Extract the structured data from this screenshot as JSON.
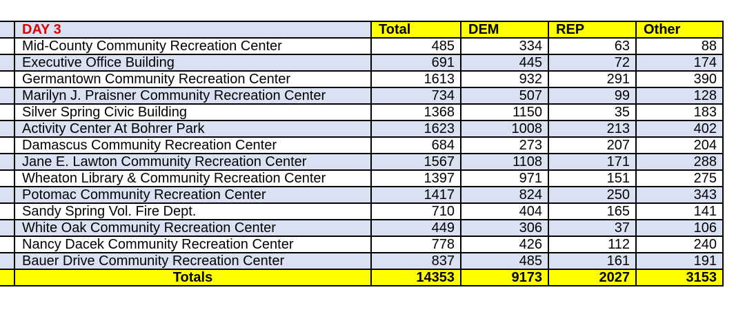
{
  "header": {
    "day": "DAY 3",
    "columns": [
      "Total",
      "DEM",
      "REP",
      "Other"
    ]
  },
  "rows": [
    {
      "location": "Mid-County Community Recreation Center",
      "total": "485",
      "dem": "334",
      "rep": "63",
      "other": "88"
    },
    {
      "location": "Executive Office Building",
      "total": "691",
      "dem": "445",
      "rep": "72",
      "other": "174"
    },
    {
      "location": "Germantown Community Recreation Center",
      "total": "1613",
      "dem": "932",
      "rep": "291",
      "other": "390"
    },
    {
      "location": "Marilyn J. Praisner Community Recreation Center",
      "total": "734",
      "dem": "507",
      "rep": "99",
      "other": "128"
    },
    {
      "location": "Silver Spring Civic Building",
      "total": "1368",
      "dem": "1150",
      "rep": "35",
      "other": "183"
    },
    {
      "location": "Activity Center At Bohrer Park",
      "total": "1623",
      "dem": "1008",
      "rep": "213",
      "other": "402"
    },
    {
      "location": "Damascus Community Recreation Center",
      "total": "684",
      "dem": "273",
      "rep": "207",
      "other": "204"
    },
    {
      "location": "Jane E. Lawton Community Recreation Center",
      "total": "1567",
      "dem": "1108",
      "rep": "171",
      "other": "288"
    },
    {
      "location": "Wheaton Library & Community Recreation Center",
      "total": "1397",
      "dem": "971",
      "rep": "151",
      "other": "275"
    },
    {
      "location": "Potomac Community Recreation Center",
      "total": "1417",
      "dem": "824",
      "rep": "250",
      "other": "343"
    },
    {
      "location": "Sandy Spring Vol. Fire Dept.",
      "total": "710",
      "dem": "404",
      "rep": "165",
      "other": "141"
    },
    {
      "location": "White Oak Community Recreation Center",
      "total": "449",
      "dem": "306",
      "rep": "37",
      "other": "106"
    },
    {
      "location": "Nancy Dacek Community Recreation Center",
      "total": "778",
      "dem": "426",
      "rep": "112",
      "other": "240"
    },
    {
      "location": "Bauer Drive Community Recreation Center",
      "total": "837",
      "dem": "485",
      "rep": "161",
      "other": "191"
    }
  ],
  "totals": {
    "label": "Totals",
    "total": "14353",
    "dem": "9173",
    "rep": "2027",
    "other": "3153"
  },
  "colors": {
    "header_yellow": "#ffff00",
    "row_band": "#d9e1f2",
    "day_red": "#e00000"
  }
}
